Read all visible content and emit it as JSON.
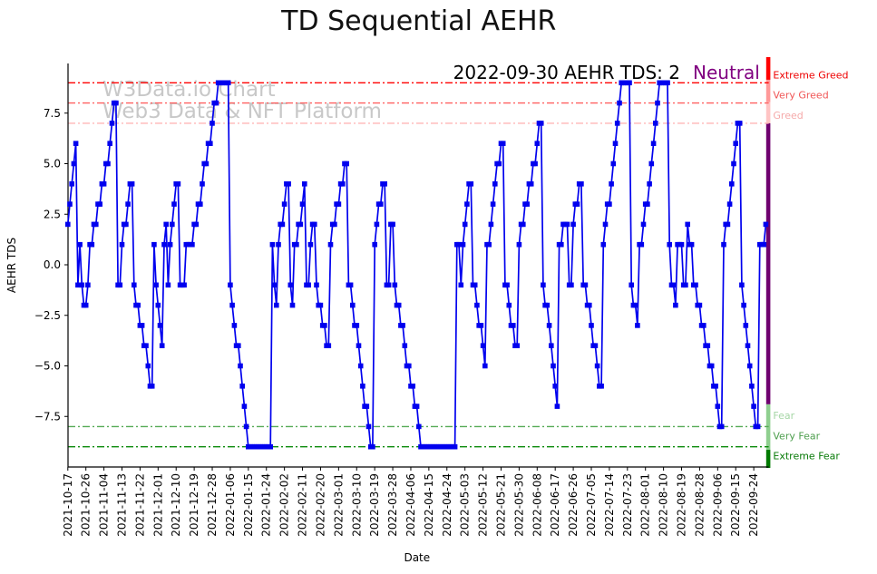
{
  "title": "TD Sequential AEHR",
  "watermark": {
    "line1": "W3Data.io Chart",
    "line2": "Web3 Data & NFT Platform",
    "color": "#c8c8c8"
  },
  "annotation": {
    "text": "2022-09-30 AEHR TDS: 2",
    "status": "Neutral",
    "status_color": "#800080",
    "text_color": "#000000"
  },
  "chart_data": {
    "type": "line",
    "title": "TD Sequential AEHR",
    "xlabel": "Date",
    "ylabel": "AEHR TDS",
    "start_date": "2021-10-17",
    "end_date": "2022-09-30",
    "x_unit": "days",
    "line_color": "#0000ee",
    "marker": "square",
    "grid": false,
    "legend_position": "none",
    "ylim": [
      -10.3,
      10.3
    ],
    "y_ticks": [
      {
        "value": 7.5,
        "label": "7.5"
      },
      {
        "value": 5.0,
        "label": "5.0"
      },
      {
        "value": 2.5,
        "label": "2.5"
      },
      {
        "value": 0.0,
        "label": "0.0"
      },
      {
        "value": -2.5,
        "label": "−2.5"
      },
      {
        "value": -5.0,
        "label": "−5.0"
      },
      {
        "value": -7.5,
        "label": "−7.5"
      }
    ],
    "x_tick_day_interval": 9,
    "x_tick_labels": [
      "2021-10-17",
      "2021-10-26",
      "2021-11-04",
      "2021-11-13",
      "2021-11-22",
      "2021-12-01",
      "2021-12-10",
      "2021-12-19",
      "2021-12-28",
      "2022-01-06",
      "2022-01-15",
      "2022-01-24",
      "2022-02-02",
      "2022-02-11",
      "2022-02-20",
      "2022-03-01",
      "2022-03-10",
      "2022-03-19",
      "2022-03-28",
      "2022-04-06",
      "2022-04-15",
      "2022-04-24",
      "2022-05-03",
      "2022-05-12",
      "2022-05-21",
      "2022-05-30",
      "2022-06-08",
      "2022-06-17",
      "2022-06-26",
      "2022-07-05",
      "2022-07-14",
      "2022-07-23",
      "2022-08-01",
      "2022-08-10",
      "2022-08-19",
      "2022-08-28",
      "2022-09-06",
      "2022-09-15",
      "2022-09-24"
    ],
    "thresholds": [
      {
        "value": 9,
        "color": "#ff0000",
        "label": "Extreme Greed",
        "label_color": "#ee0000",
        "label_side": "above"
      },
      {
        "value": 8,
        "color": "#ff6060",
        "label": "Very Greed",
        "label_color": "#f05555",
        "label_side": "above"
      },
      {
        "value": 7,
        "color": "#ffb6b6",
        "label": "Greed",
        "label_color": "#f5aaaa",
        "label_side": "above"
      },
      {
        "value": -7,
        "color": "#aederb",
        "label": "Fear",
        "label_color": "#a5d6a5",
        "label_side": "below"
      },
      {
        "value": -8,
        "color": "#55aa55",
        "label": "Very Fear",
        "label_color": "#4d9e4d",
        "label_side": "below"
      },
      {
        "value": -9,
        "color": "#0b8a0b",
        "label": "Extreme Fear",
        "label_color": "#077a07",
        "label_side": "below"
      }
    ],
    "zone_bar": {
      "x": 844.8,
      "width": 4.6,
      "segments": [
        {
          "v_from": 10.3,
          "v_to": 9.15,
          "color": "#ff0000"
        },
        {
          "v_from": 9.15,
          "v_to": 8.05,
          "color": "#ff9999"
        },
        {
          "v_from": 8.05,
          "v_to": 7.0,
          "color": "#ffc4c4"
        },
        {
          "v_from": 7.0,
          "v_to": -6.9,
          "color": "#6f006f"
        },
        {
          "v_from": -6.9,
          "v_to": -9.15,
          "color": "#8fcf8f"
        },
        {
          "v_from": -9.15,
          "v_to": -10.3,
          "color": "#007a00"
        }
      ]
    },
    "values": [
      2,
      3,
      4,
      5,
      6,
      -1,
      1,
      -1,
      -2,
      -2,
      -1,
      1,
      1,
      2,
      2,
      3,
      3,
      4,
      4,
      5,
      5,
      6,
      7,
      8,
      8,
      -1,
      -1,
      1,
      2,
      2,
      3,
      4,
      4,
      -1,
      -2,
      -2,
      -3,
      -3,
      -4,
      -4,
      -5,
      -6,
      -6,
      1,
      -1,
      -2,
      -3,
      -4,
      1,
      2,
      -1,
      1,
      2,
      3,
      4,
      4,
      -1,
      -1,
      -1,
      1,
      1,
      1,
      1,
      2,
      2,
      3,
      3,
      4,
      5,
      5,
      6,
      6,
      7,
      8,
      8,
      9,
      9,
      9,
      9,
      9,
      9,
      -1,
      -2,
      -3,
      -4,
      -4,
      -5,
      -6,
      -7,
      -8,
      -9,
      -9,
      -9,
      -9,
      -9,
      -9,
      -9,
      -9,
      -9,
      -9,
      -9,
      -9,
      1,
      -1,
      -2,
      1,
      2,
      2,
      3,
      4,
      4,
      -1,
      -2,
      1,
      1,
      2,
      2,
      3,
      4,
      -1,
      -1,
      1,
      2,
      2,
      -1,
      -2,
      -2,
      -3,
      -3,
      -4,
      -4,
      1,
      2,
      2,
      3,
      3,
      4,
      4,
      5,
      5,
      -1,
      -1,
      -2,
      -3,
      -3,
      -4,
      -5,
      -6,
      -7,
      -7,
      -8,
      -9,
      -9,
      1,
      2,
      3,
      3,
      4,
      4,
      -1,
      -1,
      2,
      2,
      -1,
      -2,
      -2,
      -3,
      -3,
      -4,
      -5,
      -5,
      -6,
      -6,
      -7,
      -7,
      -8,
      -9,
      -9,
      -9,
      -9,
      -9,
      -9,
      -9,
      -9,
      -9,
      -9,
      -9,
      -9,
      -9,
      -9,
      -9,
      -9,
      -9,
      -9,
      1,
      1,
      -1,
      1,
      2,
      3,
      4,
      4,
      -1,
      -1,
      -2,
      -3,
      -3,
      -4,
      -5,
      1,
      1,
      2,
      3,
      4,
      5,
      5,
      6,
      6,
      -1,
      -1,
      -2,
      -3,
      -3,
      -4,
      -4,
      1,
      2,
      2,
      3,
      3,
      4,
      4,
      5,
      5,
      6,
      7,
      7,
      -1,
      -2,
      -2,
      -3,
      -4,
      -5,
      -6,
      -7,
      1,
      1,
      2,
      2,
      2,
      -1,
      -1,
      2,
      3,
      3,
      4,
      4,
      -1,
      -1,
      -2,
      -2,
      -3,
      -4,
      -4,
      -5,
      -6,
      -6,
      1,
      2,
      3,
      3,
      4,
      5,
      6,
      7,
      8,
      9,
      9,
      9,
      9,
      9,
      -1,
      -2,
      -2,
      -3,
      1,
      1,
      2,
      3,
      3,
      4,
      5,
      6,
      7,
      8,
      9,
      9,
      9,
      9,
      9,
      1,
      -1,
      -1,
      -2,
      1,
      1,
      1,
      -1,
      -1,
      2,
      1,
      1,
      -1,
      -1,
      -2,
      -2,
      -3,
      -3,
      -4,
      -4,
      -5,
      -5,
      -6,
      -6,
      -7,
      -8,
      -8,
      1,
      2,
      2,
      3,
      4,
      5,
      6,
      7,
      7,
      -1,
      -2,
      -3,
      -4,
      -5,
      -6,
      -7,
      -8,
      -8,
      1,
      1,
      1,
      2
    ]
  }
}
